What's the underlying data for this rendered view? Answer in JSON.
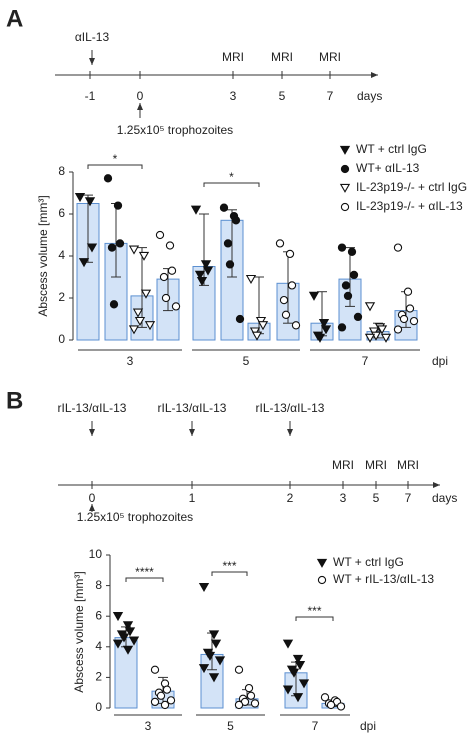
{
  "panels": [
    {
      "label": "A",
      "timeline": {
        "ticks": [
          "-1",
          "0",
          "3",
          "5",
          "7"
        ],
        "unit": "days",
        "top_labels": [
          "αIL-13",
          "MRI",
          "MRI",
          "MRI"
        ],
        "bottom_label": "1.25x10⁵ trophozoites"
      }
    },
    {
      "label": "B",
      "timeline": {
        "ticks": [
          "0",
          "1",
          "2",
          "3",
          "5",
          "7"
        ],
        "unit": "days",
        "top_labels": [
          "rIL-13/αIL-13",
          "rIL-13/αIL-13",
          "rIL-13/αIL-13",
          "MRI",
          "MRI",
          "MRI"
        ],
        "bottom_label": "1.25x10⁵ trophozoites"
      }
    }
  ],
  "chart_data": [
    {
      "type": "bar",
      "y_label": "Abscess volume [mm³]",
      "x_label": "dpi",
      "categories": [
        "3",
        "5",
        "7"
      ],
      "ylim": [
        0,
        8
      ],
      "yticks": [
        0,
        2,
        4,
        6,
        8
      ],
      "bar_color": "#d3e3f7",
      "bar_edge": "#5b8fd0",
      "series": [
        {
          "name": "WT + ctrl IgG",
          "marker": "triangle-down",
          "values": [
            6.5,
            3.5,
            0.8
          ],
          "upper": [
            6.9,
            6.0,
            2.3
          ],
          "lower": [
            3.7,
            2.6,
            0.2
          ],
          "points": [
            [
              6.8,
              6.6,
              4.4,
              3.7
            ],
            [
              6.2,
              3.6,
              3.3,
              3.1,
              2.8
            ],
            [
              2.1,
              0.8,
              0.5,
              0.2,
              0.1
            ]
          ]
        },
        {
          "name": "WT+ αIL-13",
          "marker": "circle",
          "values": [
            4.6,
            5.7,
            2.9
          ],
          "upper": [
            6.5,
            6.2,
            4.4
          ],
          "lower": [
            3.0,
            3.0,
            1.6
          ],
          "points": [
            [
              7.7,
              6.4,
              4.6,
              4.4,
              1.7
            ],
            [
              6.3,
              5.9,
              5.7,
              4.6,
              3.6,
              1.0
            ],
            [
              4.4,
              4.2,
              3.1,
              2.6,
              2.1,
              1.1,
              0.6
            ]
          ]
        },
        {
          "name": "IL-23p19-/- + ctrl IgG",
          "marker": "triangle-down-open",
          "values": [
            2.1,
            0.8,
            0.4
          ],
          "upper": [
            4.4,
            3.0,
            0.8
          ],
          "lower": [
            0.6,
            0.3,
            0.1
          ],
          "points": [
            [
              4.3,
              4.0,
              2.2,
              1.3,
              0.9,
              0.7,
              0.5
            ],
            [
              2.9,
              0.9,
              0.7,
              0.4,
              0.2
            ],
            [
              1.6,
              0.6,
              0.5,
              0.4,
              0.2,
              0.1,
              0.1
            ]
          ]
        },
        {
          "name": "IL-23p19-/- + αIL-13",
          "marker": "circle-open",
          "values": [
            2.9,
            2.7,
            1.4
          ],
          "upper": [
            3.4,
            4.2,
            2.3
          ],
          "lower": [
            1.4,
            0.8,
            0.6
          ],
          "points": [
            [
              5.0,
              4.5,
              3.3,
              3.0,
              2.0,
              1.6
            ],
            [
              4.6,
              4.1,
              2.6,
              1.9,
              1.2,
              0.7
            ],
            [
              4.4,
              2.3,
              1.5,
              1.2,
              1.0,
              0.9,
              0.5
            ]
          ]
        }
      ],
      "annotations": [
        {
          "text": "*"
        },
        {
          "text": "*"
        }
      ]
    },
    {
      "type": "bar",
      "y_label": "Abscess volume [mm³]",
      "x_label": "dpi",
      "categories": [
        "3",
        "5",
        "7"
      ],
      "ylim": [
        0,
        10
      ],
      "yticks": [
        0,
        2,
        4,
        6,
        8,
        10
      ],
      "bar_color": "#d3e3f7",
      "bar_edge": "#5b8fd0",
      "series": [
        {
          "name": "WT + ctrl IgG",
          "marker": "triangle-down",
          "values": [
            4.6,
            3.5,
            2.3
          ],
          "upper": [
            5.3,
            4.9,
            3.0
          ],
          "lower": [
            4.0,
            2.5,
            0.8
          ],
          "points": [
            [
              6.0,
              5.4,
              5.0,
              4.8,
              4.6,
              4.4,
              4.2,
              3.8
            ],
            [
              7.9,
              4.8,
              4.2,
              3.6,
              3.4,
              3.1,
              2.6,
              2.0
            ],
            [
              4.2,
              3.2,
              2.8,
              2.5,
              2.3,
              1.6,
              1.2,
              0.7
            ]
          ]
        },
        {
          "name": "WT + rIL-13/αIL-13",
          "marker": "circle-open",
          "values": [
            1.1,
            0.6,
            0.3
          ],
          "upper": [
            2.0,
            1.2,
            0.5
          ],
          "lower": [
            0.3,
            0.2,
            0.1
          ],
          "points": [
            [
              2.5,
              1.6,
              1.2,
              1.0,
              0.8,
              0.5,
              0.4,
              0.2
            ],
            [
              2.5,
              1.3,
              0.8,
              0.6,
              0.4,
              0.3,
              0.2
            ],
            [
              0.7,
              0.5,
              0.4,
              0.3,
              0.2,
              0.1
            ]
          ]
        }
      ],
      "annotations": [
        {
          "text": "****"
        },
        {
          "text": "***"
        },
        {
          "text": "***"
        }
      ]
    }
  ]
}
